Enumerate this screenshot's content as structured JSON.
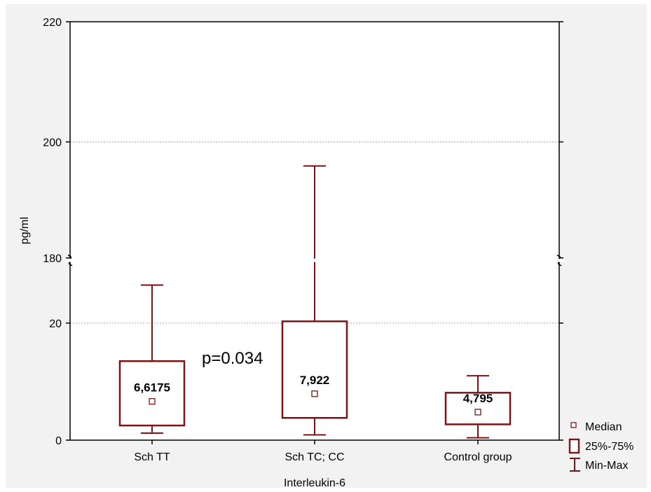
{
  "chart_data": {
    "type": "box",
    "title": "",
    "xlabel": "Interleukin-6",
    "ylabel": "pg/ml",
    "axis_break": {
      "lower_range": [
        0,
        30
      ],
      "upper_range": [
        180,
        220
      ]
    },
    "y_tick_labels": [
      "0",
      "20",
      "180",
      "200",
      "220"
    ],
    "grid": true,
    "legend_position": "bottom-right",
    "categories": [
      "Sch TT",
      "Sch TC; CC",
      "Control group"
    ],
    "groups": [
      {
        "name": "Sch TT",
        "median": 6.6175,
        "median_label": "6,6175",
        "q1": 2.5,
        "q3": 13.5,
        "min": 1.2,
        "max": 26.5
      },
      {
        "name": "Sch TC; CC",
        "median": 7.922,
        "median_label": "7,922",
        "q1": 3.8,
        "q3": 20.3,
        "min": 0.9,
        "max": 196.0
      },
      {
        "name": "Control group",
        "median": 4.795,
        "median_label": "4,795",
        "q1": 2.7,
        "q3": 8.1,
        "min": 0.4,
        "max": 11.0
      }
    ],
    "annotation": "p=0.034",
    "legend": [
      "Median",
      "25%-75%",
      "Min-Max"
    ],
    "colors": {
      "series": "#7b1414",
      "grid": "#a6a6a6",
      "background": "#f2f2f2"
    }
  }
}
